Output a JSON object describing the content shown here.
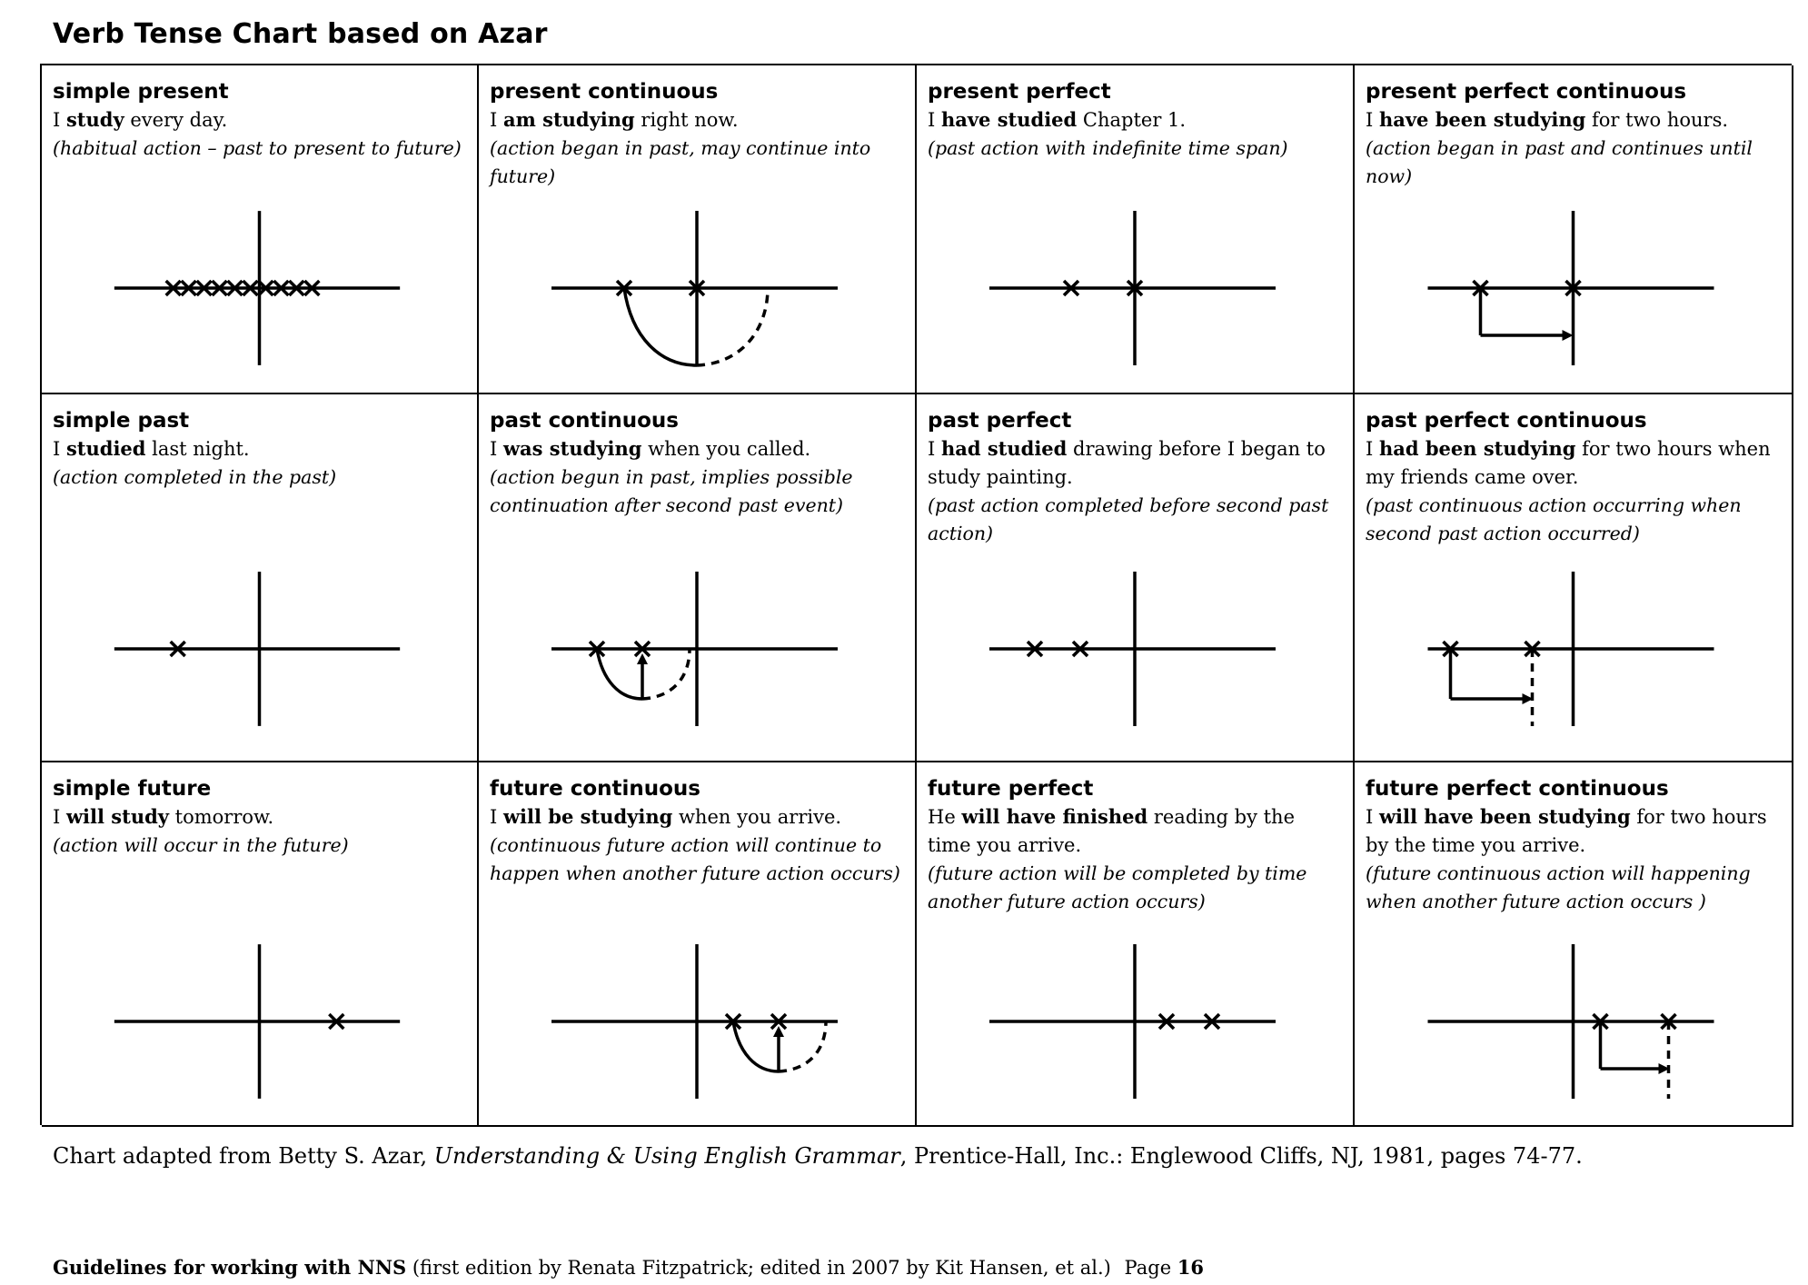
{
  "document": {
    "title": "Verb Tense Chart based on Azar"
  },
  "tenses": [
    {
      "name": "simple present",
      "pre": "I ",
      "verb": "study",
      "post": " every day.",
      "note": "(habitual action – past to present to future)",
      "diagram": "simple-present"
    },
    {
      "name": "present continuous",
      "pre": "I ",
      "verb": "am studying",
      "post": " right now.",
      "note": "(action began in past, may continue into future)",
      "diagram": "present-continuous"
    },
    {
      "name": "present perfect",
      "pre": "I ",
      "verb": "have studied",
      "post": " Chapter 1.",
      "note": "(past action with indefinite time span)",
      "diagram": "present-perfect"
    },
    {
      "name": "present perfect continuous",
      "pre": "I ",
      "verb": "have been studying",
      "post": " for two hours.",
      "note": "(action began in past and continues until now)",
      "diagram": "present-perfect-continuous"
    },
    {
      "name": "simple past",
      "pre": "I ",
      "verb": "studied",
      "post": " last night.",
      "note": "(action completed in the past)",
      "diagram": "simple-past"
    },
    {
      "name": "past continuous",
      "pre": "I ",
      "verb": "was studying",
      "post": " when you called.",
      "note": "(action begun in past, implies possible continuation after second past event)",
      "diagram": "past-continuous"
    },
    {
      "name": "past perfect",
      "pre": "I ",
      "verb": "had studied",
      "post": " drawing before I began to study painting.",
      "note": "(past action completed before second past action)",
      "diagram": "past-perfect"
    },
    {
      "name": "past perfect continuous",
      "pre": "I ",
      "verb": "had been studying",
      "post": " for two hours when my friends came over.",
      "note": "(past continuous action occurring when second past action occurred)",
      "diagram": "past-perfect-continuous"
    },
    {
      "name": "simple future",
      "pre": "I ",
      "verb": "will study",
      "post": " tomorrow.",
      "note": "(action will occur in the future)",
      "diagram": "simple-future"
    },
    {
      "name": "future continuous",
      "pre": "I ",
      "verb": "will be studying",
      "post": " when you arrive.",
      "note": "(continuous future action will continue to happen when another future action occurs)",
      "diagram": "future-continuous"
    },
    {
      "name": "future perfect",
      "pre": "He ",
      "verb": "will have finished",
      "post": " reading by the time you arrive.",
      "note": "(future action will be completed by time another future action occurs)",
      "diagram": "future-perfect"
    },
    {
      "name": "future perfect continuous",
      "pre": "I ",
      "verb": "will have been studying",
      "post": " for two hours by the time you arrive.",
      "note": "(future continuous action will happening when another future action occurs )",
      "diagram": "future-perfect-continuous"
    }
  ],
  "source": {
    "prefix": "Chart adapted from Betty S. Azar, ",
    "book": "Understanding & Using English Grammar",
    "suffix": ", Prentice-Hall, Inc.: Englewood Cliffs, NJ, 1981, pages 74-77."
  },
  "footer": {
    "bold": "Guidelines for working with NNS",
    "rest": " (first edition by Renata Fitzpatrick; edited in 2007 by Kit Hansen, et al.)",
    "page_label": "Page ",
    "page_number": "16"
  }
}
